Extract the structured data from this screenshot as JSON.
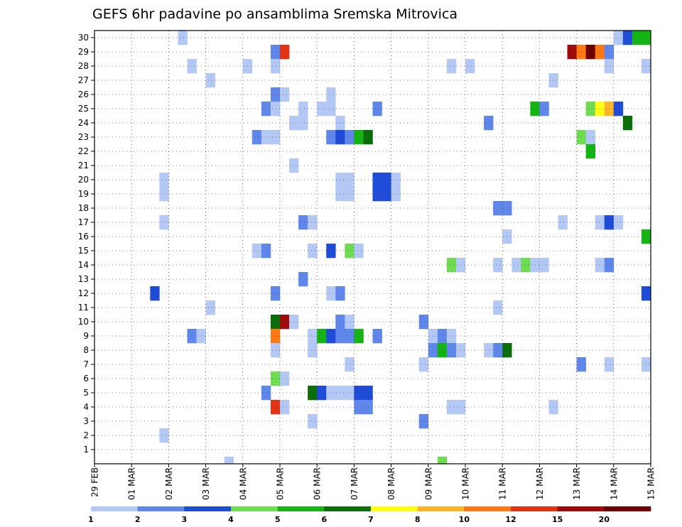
{
  "chart_data": {
    "type": "heatmap",
    "title": "GEFS 6hr padavine po ansamblima Sremska Mitrovica",
    "xlabel": "",
    "ylabel": "",
    "x_ticks": [
      "29 FEB",
      "01 MAR",
      "02 MAR",
      "03 MAR",
      "04 MAR",
      "05 MAR",
      "06 MAR",
      "07 MAR",
      "08 MAR",
      "09 MAR",
      "10 MAR",
      "11 MAR",
      "12 MAR",
      "13 MAR",
      "14 MAR",
      "15 MAR"
    ],
    "y_ticks": [
      1,
      2,
      3,
      4,
      5,
      6,
      7,
      8,
      9,
      10,
      11,
      12,
      13,
      14,
      15,
      16,
      17,
      18,
      19,
      20,
      21,
      22,
      23,
      24,
      25,
      26,
      27,
      28,
      29,
      30
    ],
    "x_range_days": [
      0,
      15
    ],
    "y_range": [
      0,
      30.5
    ],
    "grid": true,
    "legend": {
      "placement": "bottom",
      "levels": [
        "1",
        "2",
        "3",
        "4",
        "5",
        "6",
        "7",
        "8",
        "10",
        "12",
        "15",
        "20"
      ],
      "colors": [
        "#b4c8f5",
        "#5f87eb",
        "#1e4bd7",
        "#6edc50",
        "#14b414",
        "#0a6e0a",
        "#ffff14",
        "#ffb428",
        "#ff7814",
        "#e63214",
        "#a00a0a",
        "#6e0000"
      ]
    },
    "cell_fields": [
      "day",
      "member",
      "color_class"
    ],
    "cells": [
      [
        2.25,
        30,
        1
      ],
      [
        14.0,
        30,
        1
      ],
      [
        14.25,
        30,
        3
      ],
      [
        14.5,
        30,
        5
      ],
      [
        14.75,
        30,
        5
      ],
      [
        4.75,
        29,
        2
      ],
      [
        5.0,
        29,
        10
      ],
      [
        12.75,
        29,
        11
      ],
      [
        13.0,
        29,
        9
      ],
      [
        13.25,
        29,
        12
      ],
      [
        13.5,
        29,
        9
      ],
      [
        13.75,
        29,
        2
      ],
      [
        2.5,
        28,
        1
      ],
      [
        4.0,
        28,
        1
      ],
      [
        4.75,
        28,
        1
      ],
      [
        9.5,
        28,
        1
      ],
      [
        10.0,
        28,
        1
      ],
      [
        13.75,
        28,
        1
      ],
      [
        14.75,
        28,
        1
      ],
      [
        3.0,
        27,
        1
      ],
      [
        12.25,
        27,
        1
      ],
      [
        4.75,
        26,
        2
      ],
      [
        5.0,
        26,
        1
      ],
      [
        6.25,
        26,
        1
      ],
      [
        4.5,
        25,
        2
      ],
      [
        4.75,
        25,
        1
      ],
      [
        5.5,
        25,
        1
      ],
      [
        6.0,
        25,
        1
      ],
      [
        6.25,
        25,
        1
      ],
      [
        7.5,
        25,
        2
      ],
      [
        11.75,
        25,
        5
      ],
      [
        12.0,
        25,
        2
      ],
      [
        13.25,
        25,
        4
      ],
      [
        13.5,
        25,
        7
      ],
      [
        13.75,
        25,
        8
      ],
      [
        14.0,
        25,
        3
      ],
      [
        5.25,
        24,
        1
      ],
      [
        5.5,
        24,
        1
      ],
      [
        6.5,
        24,
        1
      ],
      [
        10.5,
        24,
        2
      ],
      [
        14.25,
        24,
        6
      ],
      [
        4.25,
        23,
        2
      ],
      [
        4.5,
        23,
        1
      ],
      [
        4.75,
        23,
        1
      ],
      [
        6.25,
        23,
        2
      ],
      [
        6.5,
        23,
        3
      ],
      [
        6.75,
        23,
        2
      ],
      [
        7.0,
        23,
        5
      ],
      [
        7.25,
        23,
        6
      ],
      [
        13.0,
        23,
        4
      ],
      [
        13.25,
        23,
        1
      ],
      [
        13.25,
        22,
        5
      ],
      [
        5.25,
        21,
        1
      ],
      [
        1.75,
        20,
        1
      ],
      [
        6.5,
        20,
        1
      ],
      [
        6.75,
        20,
        1
      ],
      [
        7.5,
        20,
        3
      ],
      [
        7.75,
        20,
        3
      ],
      [
        8.0,
        20,
        1
      ],
      [
        1.75,
        19,
        1
      ],
      [
        6.5,
        19,
        1
      ],
      [
        6.75,
        19,
        1
      ],
      [
        7.5,
        19,
        3
      ],
      [
        7.75,
        19,
        3
      ],
      [
        8.0,
        19,
        1
      ],
      [
        10.75,
        18,
        2
      ],
      [
        11.0,
        18,
        2
      ],
      [
        1.75,
        17,
        1
      ],
      [
        5.5,
        17,
        2
      ],
      [
        5.75,
        17,
        1
      ],
      [
        12.5,
        17,
        1
      ],
      [
        13.5,
        17,
        1
      ],
      [
        13.75,
        17,
        3
      ],
      [
        14.0,
        17,
        1
      ],
      [
        11.0,
        16,
        1
      ],
      [
        14.75,
        16,
        5
      ],
      [
        4.25,
        15,
        1
      ],
      [
        4.5,
        15,
        2
      ],
      [
        5.75,
        15,
        1
      ],
      [
        6.25,
        15,
        3
      ],
      [
        6.75,
        15,
        4
      ],
      [
        7.0,
        15,
        1
      ],
      [
        9.5,
        14,
        4
      ],
      [
        9.75,
        14,
        1
      ],
      [
        10.75,
        14,
        1
      ],
      [
        11.25,
        14,
        1
      ],
      [
        11.5,
        14,
        4
      ],
      [
        11.75,
        14,
        1
      ],
      [
        12.0,
        14,
        1
      ],
      [
        13.5,
        14,
        1
      ],
      [
        13.75,
        14,
        2
      ],
      [
        5.5,
        13,
        2
      ],
      [
        1.5,
        12,
        3
      ],
      [
        4.75,
        12,
        2
      ],
      [
        6.25,
        12,
        1
      ],
      [
        6.5,
        12,
        2
      ],
      [
        14.75,
        12,
        3
      ],
      [
        3.0,
        11,
        1
      ],
      [
        10.75,
        11,
        1
      ],
      [
        4.75,
        10,
        6
      ],
      [
        5.0,
        10,
        11
      ],
      [
        5.25,
        10,
        1
      ],
      [
        6.5,
        10,
        2
      ],
      [
        6.75,
        10,
        1
      ],
      [
        8.75,
        10,
        2
      ],
      [
        2.5,
        9,
        2
      ],
      [
        2.75,
        9,
        1
      ],
      [
        4.75,
        9,
        9
      ],
      [
        5.75,
        9,
        1
      ],
      [
        6.0,
        9,
        5
      ],
      [
        6.25,
        9,
        3
      ],
      [
        6.5,
        9,
        2
      ],
      [
        6.75,
        9,
        2
      ],
      [
        7.0,
        9,
        5
      ],
      [
        7.5,
        9,
        2
      ],
      [
        9.0,
        9,
        1
      ],
      [
        9.25,
        9,
        2
      ],
      [
        9.5,
        9,
        1
      ],
      [
        4.75,
        8,
        1
      ],
      [
        5.75,
        8,
        1
      ],
      [
        9.0,
        8,
        2
      ],
      [
        9.25,
        8,
        5
      ],
      [
        9.5,
        8,
        2
      ],
      [
        9.75,
        8,
        1
      ],
      [
        10.5,
        8,
        1
      ],
      [
        10.75,
        8,
        2
      ],
      [
        11.0,
        8,
        6
      ],
      [
        6.75,
        7,
        1
      ],
      [
        8.75,
        7,
        1
      ],
      [
        13.0,
        7,
        2
      ],
      [
        13.75,
        7,
        1
      ],
      [
        14.75,
        7,
        1
      ],
      [
        4.75,
        6,
        4
      ],
      [
        5.0,
        6,
        1
      ],
      [
        4.5,
        5,
        2
      ],
      [
        5.75,
        5,
        6
      ],
      [
        6.0,
        5,
        3
      ],
      [
        6.25,
        5,
        1
      ],
      [
        6.5,
        5,
        1
      ],
      [
        6.75,
        5,
        1
      ],
      [
        7.0,
        5,
        3
      ],
      [
        7.25,
        5,
        3
      ],
      [
        4.75,
        4,
        10
      ],
      [
        5.0,
        4,
        1
      ],
      [
        7.0,
        4,
        2
      ],
      [
        7.25,
        4,
        2
      ],
      [
        9.5,
        4,
        1
      ],
      [
        9.75,
        4,
        1
      ],
      [
        12.25,
        4,
        1
      ],
      [
        5.75,
        3,
        1
      ],
      [
        8.75,
        3,
        2
      ],
      [
        1.75,
        2,
        1
      ],
      [
        3.5,
        0,
        1
      ],
      [
        9.25,
        0,
        4
      ]
    ]
  }
}
